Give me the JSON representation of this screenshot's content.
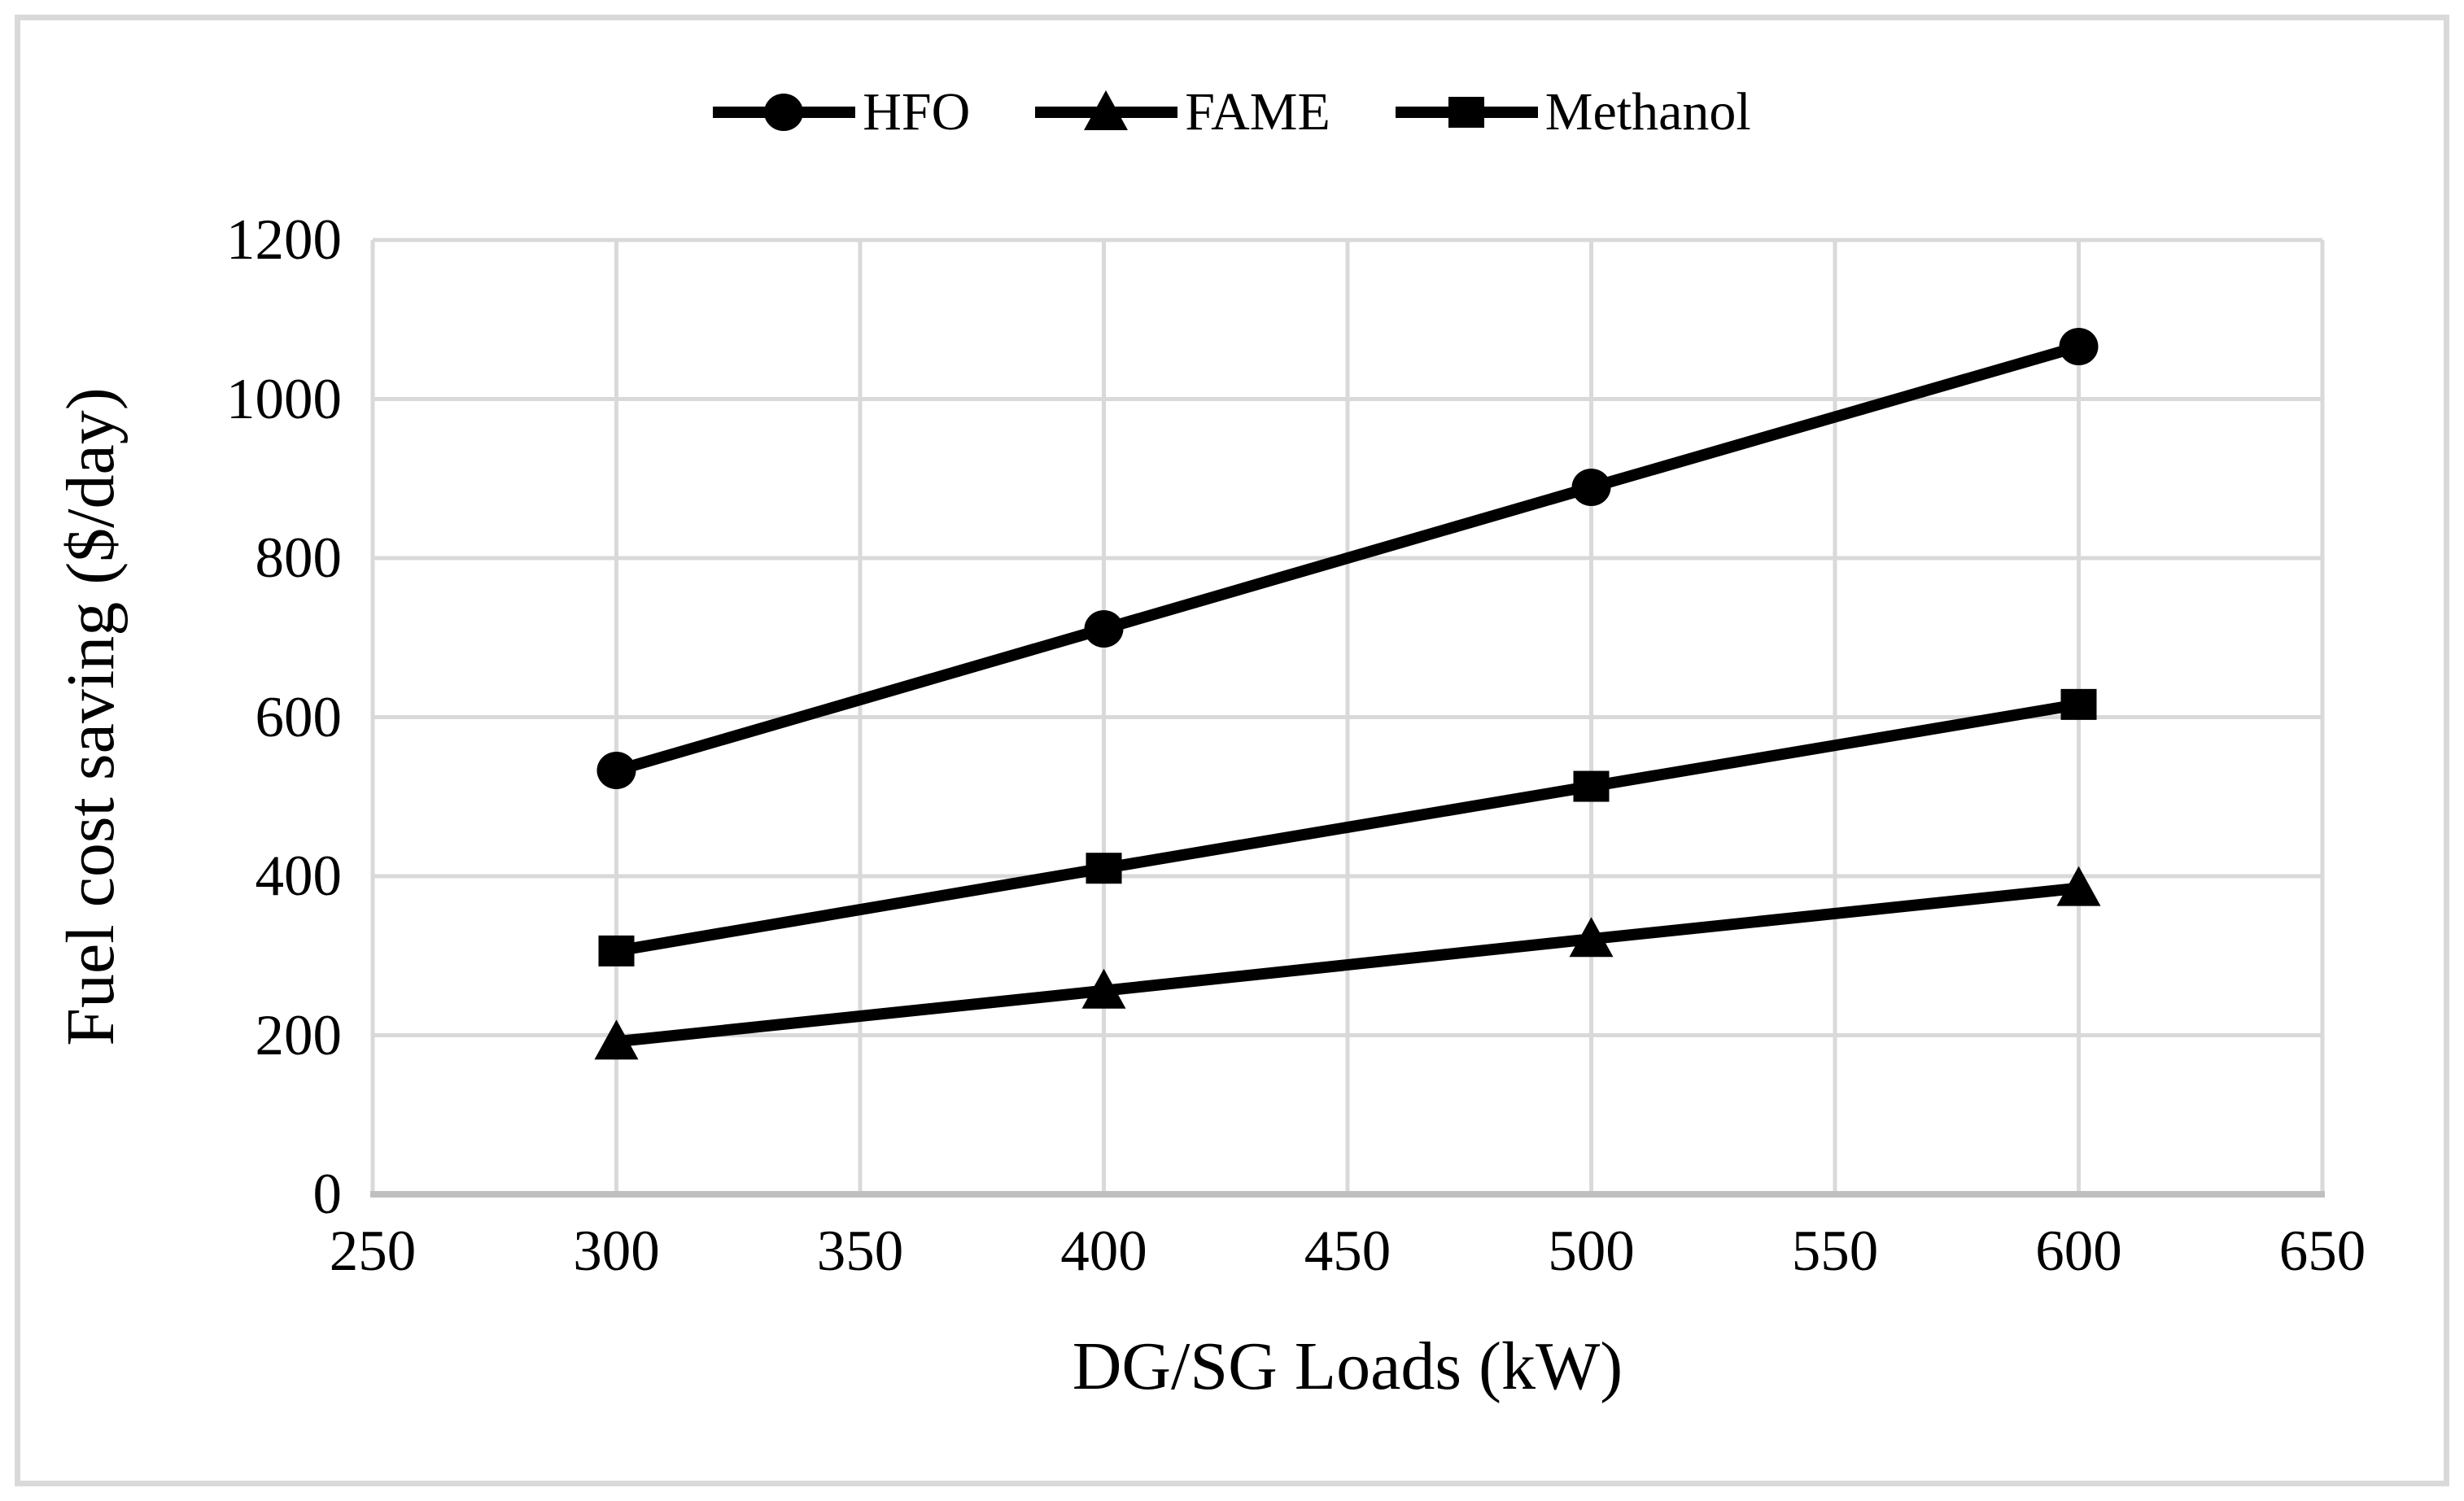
{
  "figure": {
    "background": "#ffffff",
    "frame_color": "#d9d9d9"
  },
  "chart_data": {
    "type": "line",
    "title": "",
    "xlabel": "DG/SG Loads (kW)",
    "ylabel": "Fuel cost saving ($/day)",
    "x": [
      300,
      400,
      500,
      600
    ],
    "series": [
      {
        "name": "HFO",
        "marker": "circle",
        "color": "#000000",
        "values": [
          533,
          711,
          889,
          1066
        ]
      },
      {
        "name": "FAME",
        "marker": "triangle",
        "color": "#000000",
        "values": [
          192,
          256,
          321,
          385
        ]
      },
      {
        "name": "Methanol",
        "marker": "square",
        "color": "#000000",
        "values": [
          306,
          410,
          513,
          616
        ]
      }
    ],
    "xlim": [
      250,
      650
    ],
    "ylim": [
      0,
      1200
    ],
    "x_ticks": [
      250,
      300,
      350,
      400,
      450,
      500,
      550,
      600,
      650
    ],
    "y_ticks": [
      0,
      200,
      400,
      600,
      800,
      1000,
      1200
    ],
    "grid": true,
    "gridline_color": "#d9d9d9",
    "axis_line_color": "#bfbfbf",
    "legend_position": "top-center",
    "legend": [
      "HFO",
      "FAME",
      "Methanol"
    ]
  }
}
